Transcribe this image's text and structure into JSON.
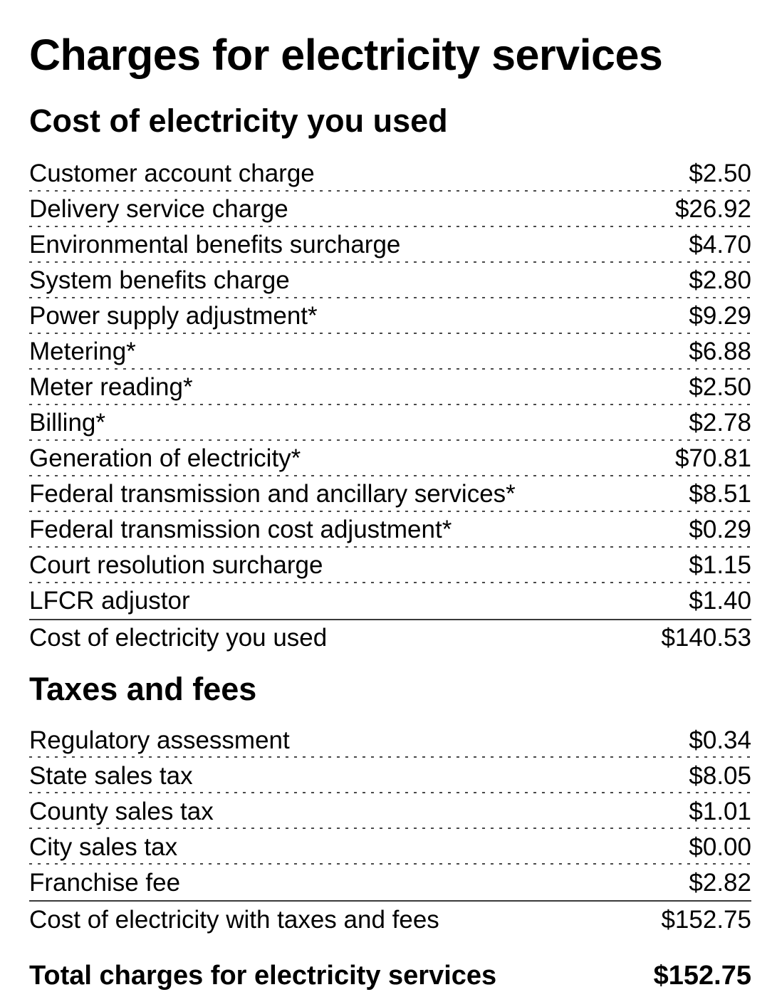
{
  "page": {
    "title": "Charges for electricity services"
  },
  "sections": [
    {
      "heading": "Cost of electricity you used",
      "items": [
        {
          "label": "Customer account charge",
          "amount": "$2.50"
        },
        {
          "label": "Delivery service charge",
          "amount": "$26.92"
        },
        {
          "label": "Environmental benefits surcharge",
          "amount": "$4.70"
        },
        {
          "label": "System benefits charge",
          "amount": "$2.80"
        },
        {
          "label": "Power supply adjustment*",
          "amount": "$9.29"
        },
        {
          "label": "Metering*",
          "amount": "$6.88"
        },
        {
          "label": "Meter reading*",
          "amount": "$2.50"
        },
        {
          "label": "Billing*",
          "amount": "$2.78"
        },
        {
          "label": "Generation of electricity*",
          "amount": "$70.81"
        },
        {
          "label": "Federal transmission and ancillary services*",
          "amount": "$8.51"
        },
        {
          "label": "Federal transmission cost adjustment*",
          "amount": "$0.29"
        },
        {
          "label": "Court resolution surcharge",
          "amount": "$1.15"
        },
        {
          "label": "LFCR adjustor",
          "amount": "$1.40"
        }
      ],
      "subtotal": {
        "label": "Cost of electricity you used",
        "amount": "$140.53"
      }
    },
    {
      "heading": "Taxes and fees",
      "items": [
        {
          "label": "Regulatory assessment",
          "amount": "$0.34"
        },
        {
          "label": "State sales tax",
          "amount": "$8.05"
        },
        {
          "label": "County sales tax",
          "amount": "$1.01"
        },
        {
          "label": "City sales tax",
          "amount": "$0.00"
        },
        {
          "label": "Franchise fee",
          "amount": "$2.82"
        }
      ],
      "subtotal": {
        "label": "Cost of electricity with taxes and fees",
        "amount": "$152.75"
      }
    }
  ],
  "total": {
    "label": "Total charges for electricity services",
    "amount": "$152.75"
  },
  "colors": {
    "text": "#000000",
    "background": "#ffffff",
    "dotted_separator": "#4a4a4a",
    "solid_rule": "#3a3a3a"
  }
}
